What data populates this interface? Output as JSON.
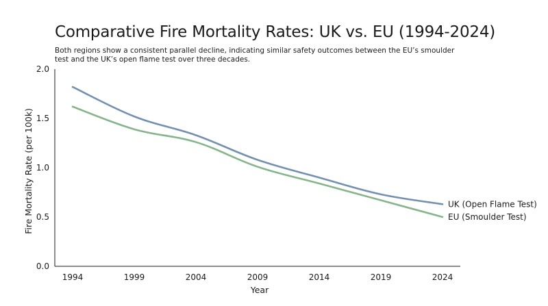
{
  "chart_data": {
    "type": "line",
    "title": "Comparative Fire Mortality Rates: UK vs. EU (1994-2024)",
    "subtitle": "Both regions show a consistent parallel decline, indicating similar safety outcomes between the EU’s smoulder test and the UK’s open flame test over three decades.",
    "xlabel": "Year",
    "ylabel": "Fire Mortality Rate (per 100k)",
    "x": [
      1994,
      1999,
      2004,
      2009,
      2014,
      2019,
      2024
    ],
    "x_tick_labels": [
      "1994",
      "1999",
      "2004",
      "2009",
      "2014",
      "2019",
      "2024"
    ],
    "xlim": [
      1994,
      2024
    ],
    "ylim": [
      0.0,
      2.0
    ],
    "y_ticks": [
      0.0,
      0.5,
      1.0,
      1.5,
      2.0
    ],
    "y_tick_labels": [
      "0.0",
      "0.5",
      "1.0",
      "1.5",
      "2.0"
    ],
    "grid": false,
    "legend": "direct labels at line ends",
    "series": [
      {
        "name": "UK (Open Flame Test)",
        "color": "#7390b0",
        "values": [
          1.82,
          1.52,
          1.33,
          1.08,
          0.9,
          0.73,
          0.63
        ]
      },
      {
        "name": "EU (Smoulder Test)",
        "color": "#86b58c",
        "values": [
          1.62,
          1.39,
          1.26,
          1.01,
          0.84,
          0.67,
          0.5
        ]
      }
    ]
  }
}
